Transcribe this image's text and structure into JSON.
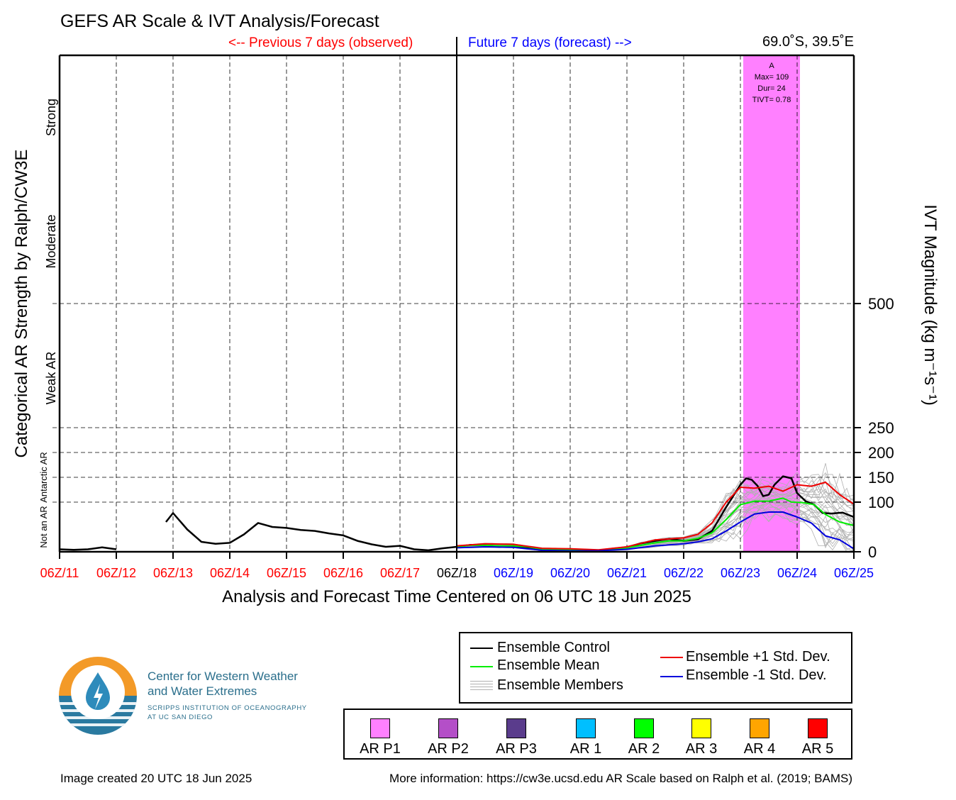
{
  "header": {
    "title": "GEFS AR Scale & IVT Analysis/Forecast",
    "prev_label": "<-- Previous 7 days (observed)",
    "future_label": "Future 7 days (forecast) -->",
    "location": "69.0˚S, 39.5˚E"
  },
  "colors": {
    "observed": "#ff0000",
    "forecast": "#0000ff",
    "control": "#000000",
    "mean": "#00ee00",
    "plus_std": "#ee0000",
    "minus_std": "#0000dd",
    "members": "#b0b0b0",
    "ar_event": "#ff80ff"
  },
  "chart_data": {
    "type": "line",
    "xlabel": "Analysis and Forecast Time Centered on 06 UTC 18 Jun 2025",
    "ylabel_left": "Categorical AR Strength by Ralph/CW3E",
    "ylabel_right": "IVT Magnitude (kg m⁻¹s⁻¹)",
    "x_ticks": [
      {
        "label": "06Z/11",
        "day": 11,
        "color": "observed"
      },
      {
        "label": "06Z/12",
        "day": 12,
        "color": "observed"
      },
      {
        "label": "06Z/13",
        "day": 13,
        "color": "observed"
      },
      {
        "label": "06Z/14",
        "day": 14,
        "color": "observed"
      },
      {
        "label": "06Z/15",
        "day": 15,
        "color": "observed"
      },
      {
        "label": "06Z/16",
        "day": 16,
        "color": "observed"
      },
      {
        "label": "06Z/17",
        "day": 17,
        "color": "observed"
      },
      {
        "label": "06Z/18",
        "day": 18,
        "color": "black"
      },
      {
        "label": "06Z/19",
        "day": 19,
        "color": "forecast"
      },
      {
        "label": "06Z/20",
        "day": 20,
        "color": "forecast"
      },
      {
        "label": "06Z/21",
        "day": 21,
        "color": "forecast"
      },
      {
        "label": "06Z/22",
        "day": 22,
        "color": "forecast"
      },
      {
        "label": "06Z/23",
        "day": 23,
        "color": "forecast"
      },
      {
        "label": "06Z/24",
        "day": 24,
        "color": "forecast"
      },
      {
        "label": "06Z/25",
        "day": 25,
        "color": "forecast"
      }
    ],
    "xlim": [
      11,
      25
    ],
    "y_ticks": [
      0,
      100,
      150,
      200,
      250,
      500
    ],
    "ylim": [
      0,
      1000
    ],
    "category_labels": [
      {
        "label": "Not an AR",
        "small": true
      },
      {
        "label": "Antarctic AR",
        "small": true
      },
      {
        "label": "Weak AR",
        "small": false
      },
      {
        "label": "Moderate",
        "small": false
      },
      {
        "label": "Strong",
        "small": false
      }
    ],
    "category_y": [
      50,
      150,
      350,
      625,
      875
    ],
    "ar_event": {
      "x_start": 23.05,
      "x_end": 24.05,
      "label": "A",
      "max": "Max= 109",
      "dur": "Dur= 24",
      "tivt": "TIVT= 0.78"
    },
    "series": [
      {
        "name": "Analysis",
        "role": "control",
        "segments": [
          [
            [
              11.0,
              5
            ],
            [
              11.25,
              4
            ],
            [
              11.5,
              5
            ],
            [
              11.75,
              9
            ],
            [
              12.0,
              5
            ]
          ],
          [
            [
              12.875,
              60
            ],
            [
              13.0,
              78
            ],
            [
              13.25,
              45
            ],
            [
              13.5,
              20
            ],
            [
              13.75,
              16
            ],
            [
              14.0,
              18
            ],
            [
              14.25,
              35
            ],
            [
              14.5,
              58
            ],
            [
              14.75,
              50
            ],
            [
              15.0,
              48
            ],
            [
              15.25,
              44
            ],
            [
              15.5,
              42
            ],
            [
              15.75,
              37
            ],
            [
              16.0,
              33
            ],
            [
              16.25,
              22
            ],
            [
              16.5,
              15
            ],
            [
              16.75,
              10
            ],
            [
              17.0,
              12
            ],
            [
              17.25,
              5
            ],
            [
              17.5,
              3
            ],
            [
              17.75,
              7
            ],
            [
              18.0,
              10
            ]
          ]
        ]
      },
      {
        "name": "Ensemble Control",
        "role": "control",
        "segments": [
          [
            [
              18.0,
              10
            ],
            [
              18.25,
              14
            ],
            [
              18.5,
              13
            ],
            [
              18.75,
              11
            ],
            [
              19.0,
              11
            ],
            [
              19.25,
              9
            ],
            [
              19.5,
              3
            ],
            [
              19.75,
              4
            ],
            [
              20.0,
              4
            ],
            [
              20.25,
              3
            ],
            [
              20.5,
              3
            ],
            [
              20.75,
              6
            ],
            [
              21.0,
              9
            ],
            [
              21.25,
              17
            ],
            [
              21.5,
              22
            ],
            [
              21.75,
              26
            ],
            [
              22.0,
              22
            ],
            [
              22.25,
              25
            ],
            [
              22.5,
              42
            ],
            [
              22.75,
              90
            ],
            [
              23.0,
              135
            ],
            [
              23.1,
              148
            ],
            [
              23.2,
              145
            ],
            [
              23.3,
              133
            ],
            [
              23.4,
              112
            ],
            [
              23.5,
              115
            ],
            [
              23.6,
              135
            ],
            [
              23.75,
              152
            ],
            [
              23.9,
              148
            ],
            [
              24.0,
              118
            ],
            [
              24.15,
              102
            ],
            [
              24.3,
              95
            ],
            [
              24.45,
              78
            ],
            [
              24.6,
              77
            ],
            [
              24.8,
              79
            ],
            [
              25.0,
              70
            ]
          ]
        ]
      },
      {
        "name": "Ensemble Mean",
        "role": "mean",
        "segments": [
          [
            [
              18.0,
              10
            ],
            [
              18.25,
              13
            ],
            [
              18.5,
              13
            ],
            [
              18.75,
              12
            ],
            [
              19.0,
              12
            ],
            [
              19.25,
              10
            ],
            [
              19.5,
              5
            ],
            [
              19.75,
              5
            ],
            [
              20.0,
              4
            ],
            [
              20.25,
              3
            ],
            [
              20.5,
              3
            ],
            [
              20.75,
              5
            ],
            [
              21.0,
              8
            ],
            [
              21.25,
              13
            ],
            [
              21.5,
              18
            ],
            [
              21.75,
              22
            ],
            [
              22.0,
              22
            ],
            [
              22.25,
              27
            ],
            [
              22.5,
              38
            ],
            [
              22.75,
              65
            ],
            [
              23.0,
              95
            ],
            [
              23.25,
              102
            ],
            [
              23.5,
              102
            ],
            [
              23.75,
              108
            ],
            [
              23.9,
              100
            ],
            [
              24.1,
              99
            ],
            [
              24.3,
              95
            ],
            [
              24.5,
              75
            ],
            [
              24.75,
              60
            ],
            [
              25.0,
              53
            ]
          ]
        ]
      },
      {
        "name": "Ensemble +1 Std. Dev.",
        "role": "plus_std",
        "segments": [
          [
            [
              18.0,
              12
            ],
            [
              18.5,
              16
            ],
            [
              19.0,
              15
            ],
            [
              19.5,
              7
            ],
            [
              20.0,
              6
            ],
            [
              20.5,
              4
            ],
            [
              21.0,
              10
            ],
            [
              21.5,
              24
            ],
            [
              22.0,
              28
            ],
            [
              22.25,
              35
            ],
            [
              22.5,
              58
            ],
            [
              22.75,
              100
            ],
            [
              23.0,
              130
            ],
            [
              23.25,
              128
            ],
            [
              23.5,
              132
            ],
            [
              23.75,
              122
            ],
            [
              24.0,
              135
            ],
            [
              24.25,
              132
            ],
            [
              24.5,
              140
            ],
            [
              24.75,
              115
            ],
            [
              25.0,
              96
            ]
          ]
        ]
      },
      {
        "name": "Ensemble -1 Std. Dev.",
        "role": "minus_std",
        "segments": [
          [
            [
              18.0,
              8
            ],
            [
              18.5,
              10
            ],
            [
              19.0,
              9
            ],
            [
              19.5,
              3
            ],
            [
              20.0,
              2
            ],
            [
              20.5,
              2
            ],
            [
              21.0,
              5
            ],
            [
              21.5,
              12
            ],
            [
              22.0,
              16
            ],
            [
              22.25,
              20
            ],
            [
              22.5,
              26
            ],
            [
              22.75,
              42
            ],
            [
              23.0,
              60
            ],
            [
              23.25,
              76
            ],
            [
              23.5,
              80
            ],
            [
              23.75,
              80
            ],
            [
              24.0,
              70
            ],
            [
              24.25,
              58
            ],
            [
              24.5,
              32
            ],
            [
              24.75,
              24
            ],
            [
              25.0,
              6
            ]
          ]
        ]
      }
    ]
  },
  "legend": {
    "control": "Ensemble Control",
    "mean": "Ensemble Mean",
    "members": "Ensemble Members",
    "plus_std": "Ensemble +1 Std. Dev.",
    "minus_std": "Ensemble -1 Std. Dev."
  },
  "scale_legend": [
    {
      "label": "AR P1",
      "color": "#ff80ff"
    },
    {
      "label": "AR P2",
      "color": "#b44fc8"
    },
    {
      "label": "AR P3",
      "color": "#5a3c8c"
    },
    {
      "label": "AR 1",
      "color": "#00bfff"
    },
    {
      "label": "AR 2",
      "color": "#00ff00"
    },
    {
      "label": "AR 3",
      "color": "#ffff00"
    },
    {
      "label": "AR 4",
      "color": "#ffa500"
    },
    {
      "label": "AR 5",
      "color": "#ff0000"
    }
  ],
  "logo": {
    "name_line1": "Center for Western Weather",
    "name_line2": "and Water Extremes",
    "sub_line1": "SCRIPPS INSTITUTION OF OCEANOGRAPHY",
    "sub_line2": "AT UC SAN DIEGO"
  },
  "footer": {
    "created": "Image created 20 UTC 18 Jun 2025",
    "more_info": "More information: https://cw3e.ucsd.edu AR Scale based on Ralph et al. (2019; BAMS)"
  }
}
